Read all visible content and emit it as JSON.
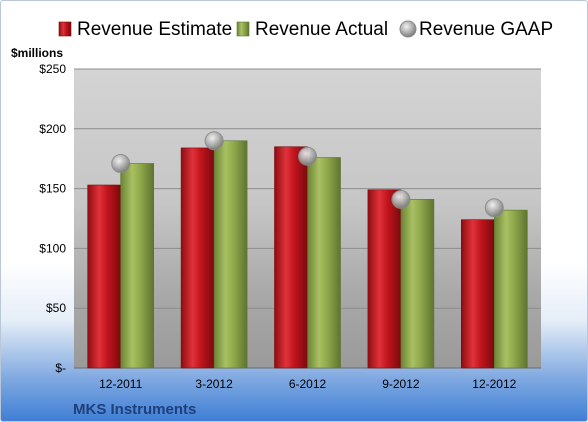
{
  "chart_data": {
    "type": "bar",
    "title": "",
    "company": "MKS Instruments",
    "unit_label": "$millions",
    "categories": [
      "12-2011",
      "3-2012",
      "6-2012",
      "9-2012",
      "12-2012"
    ],
    "series": [
      {
        "name": "Revenue Estimate",
        "type": "bar",
        "color": "#c0141c",
        "values": [
          153,
          184,
          185,
          149,
          124
        ]
      },
      {
        "name": "Revenue Actual",
        "type": "bar",
        "color": "#8fa84a",
        "values": [
          171,
          190,
          176,
          141,
          132
        ]
      },
      {
        "name": "Revenue GAAP",
        "type": "marker",
        "color": "#a6a6a6",
        "values": [
          171,
          190,
          177,
          141,
          134
        ]
      }
    ],
    "ylim": [
      0,
      250
    ],
    "yticks": [
      {
        "value": 0,
        "label": "$-"
      },
      {
        "value": 50,
        "label": "$50"
      },
      {
        "value": 100,
        "label": "$100"
      },
      {
        "value": 150,
        "label": "$150"
      },
      {
        "value": 200,
        "label": "$200"
      },
      {
        "value": 250,
        "label": "$250"
      }
    ],
    "grid": true,
    "legend_position": "top"
  }
}
